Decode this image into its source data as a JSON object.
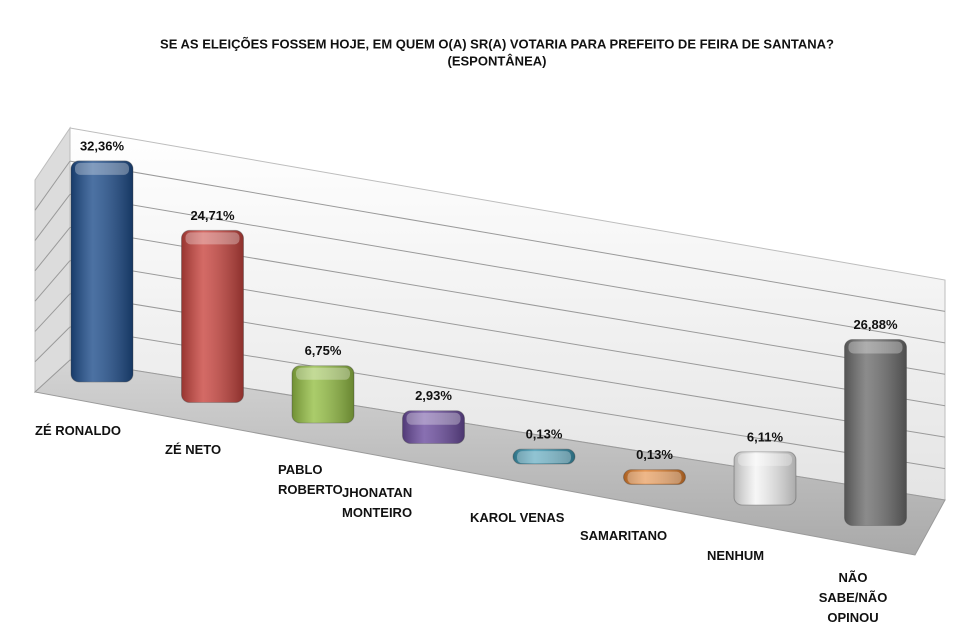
{
  "chart_data": {
    "type": "bar3d",
    "title": "SE AS ELEIÇÕES FOSSEM HOJE, EM QUEM O(A) SR(A) VOTARIA PARA PREFEITO DE FEIRA DE SANTANA?",
    "subtitle": "(ESPONTÂNEA)",
    "categories": [
      "ZÉ RONALDO",
      "ZÉ NETO",
      "PABLO ROBERTO",
      "JHONATAN MONTEIRO",
      "KAROL VENAS",
      "SAMARITANO",
      "NENHUM",
      "NÃO SABE/NÃO OPINOU"
    ],
    "values": [
      32.36,
      24.71,
      6.75,
      2.93,
      0.13,
      0.13,
      6.11,
      26.88
    ],
    "value_labels": [
      "32,36%",
      "24,71%",
      "6,75%",
      "2,93%",
      "0,13%",
      "0,13%",
      "6,11%",
      "26,88%"
    ],
    "colors": [
      "#1f4e8c",
      "#c9453f",
      "#95bf45",
      "#6b4c9e",
      "#3a95b0",
      "#e17f2c",
      "#f4f4f4",
      "#6e6e6e"
    ]
  }
}
